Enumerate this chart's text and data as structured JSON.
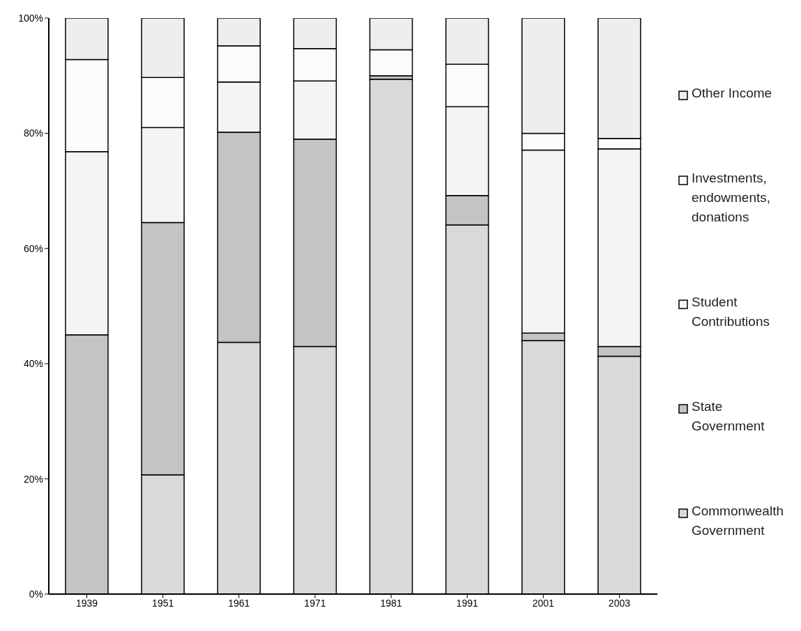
{
  "chart_data": {
    "type": "bar",
    "stacked": true,
    "categories": [
      "1939",
      "1951",
      "1961",
      "1971",
      "1981",
      "1991",
      "2001",
      "2003"
    ],
    "series": [
      {
        "name": "Commonwealth Government",
        "color": "#d9d9d9",
        "values": [
          0,
          20.7,
          43.7,
          43,
          89.4,
          64.1,
          44,
          41.3
        ]
      },
      {
        "name": "State Government",
        "color": "#c4c4c4",
        "values": [
          45,
          43.8,
          36.5,
          36,
          0.6,
          5.1,
          1.3,
          1.7
        ]
      },
      {
        "name": "Student Contributions",
        "color": "#f4f4f4",
        "values": [
          31.8,
          16.5,
          8.7,
          10.1,
          0,
          15.4,
          31.8,
          34.3
        ]
      },
      {
        "name": "Investments, endowments, donations",
        "color": "#fbfbfb",
        "values": [
          16,
          8.7,
          6.3,
          5.6,
          4.5,
          7.4,
          2.9,
          1.8
        ]
      },
      {
        "name": "Other Income",
        "color": "#eeeeee",
        "values": [
          7.2,
          10.3,
          4.8,
          5.3,
          5.5,
          8,
          20,
          20.9
        ]
      }
    ],
    "ylim": [
      0,
      100
    ],
    "yticks": [
      {
        "value": 0,
        "label": "0%"
      },
      {
        "value": 20,
        "label": "20%"
      },
      {
        "value": 40,
        "label": "40%"
      },
      {
        "value": 60,
        "label": "60%"
      },
      {
        "value": 80,
        "label": "80%"
      },
      {
        "value": 100,
        "label": "100%"
      }
    ],
    "grid": false,
    "legend": "right"
  }
}
